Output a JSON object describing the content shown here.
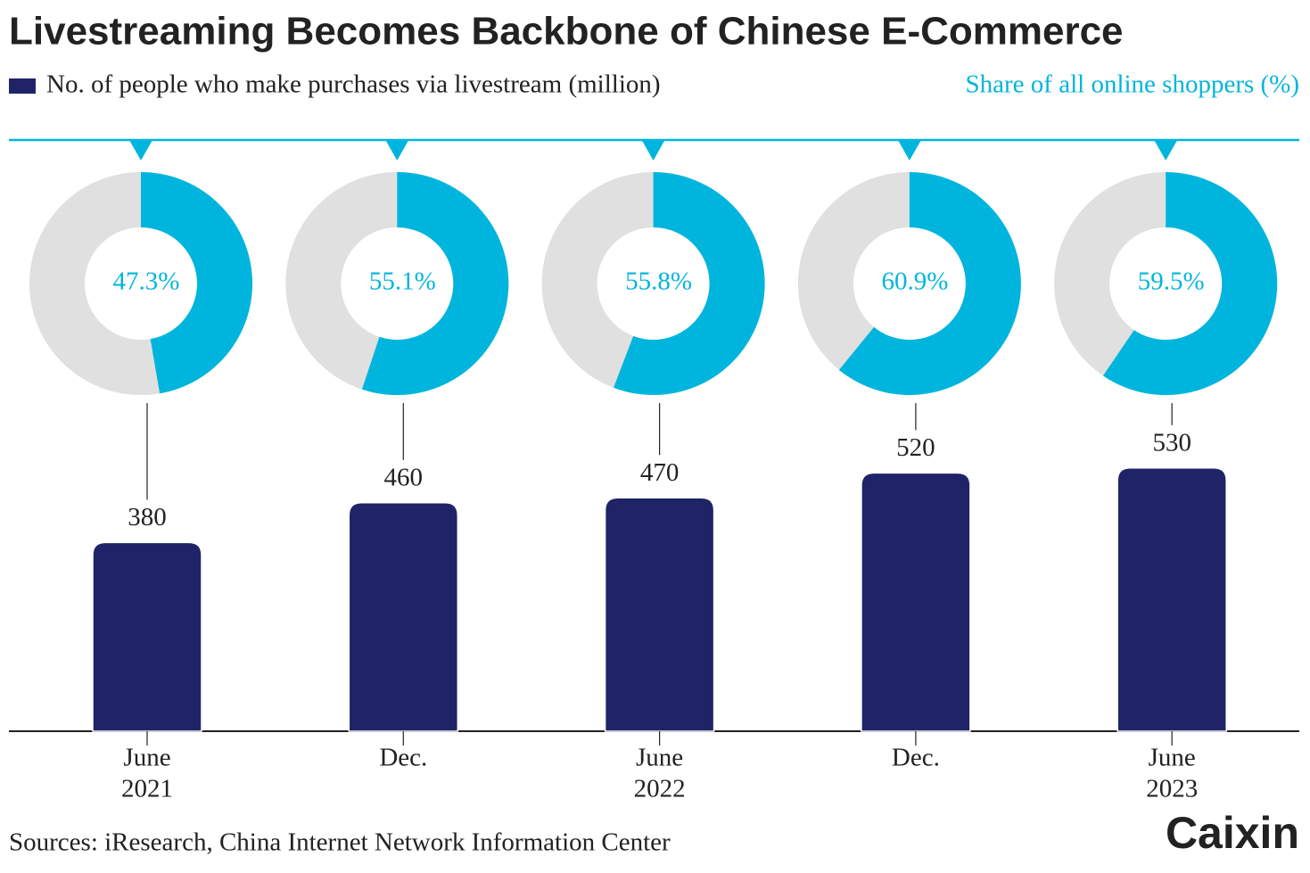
{
  "chart_data": {
    "type": "bar_donut",
    "title": "Livestreaming Becomes Backbone of Chinese E-Commerce",
    "categories": [
      [
        "June",
        "2021"
      ],
      [
        "Dec."
      ],
      [
        "June",
        "2022"
      ],
      [
        "Dec."
      ],
      [
        "June",
        "2023"
      ]
    ],
    "series": [
      {
        "name": "No. of people who make purchases via livestream (million)",
        "color": "#1f2468",
        "values": [
          380,
          460,
          470,
          520,
          530
        ]
      },
      {
        "name": "Share of all online shoppers (%)",
        "color": "#00b5dd",
        "values": [
          47.3,
          55.1,
          55.8,
          60.9,
          59.5
        ],
        "value_labels": [
          "47.3%",
          "55.1%",
          "55.8%",
          "60.9%",
          "59.5%"
        ]
      }
    ],
    "source": "Sources: iResearch, China Internet Network Information Center",
    "brand": "Caixin"
  }
}
